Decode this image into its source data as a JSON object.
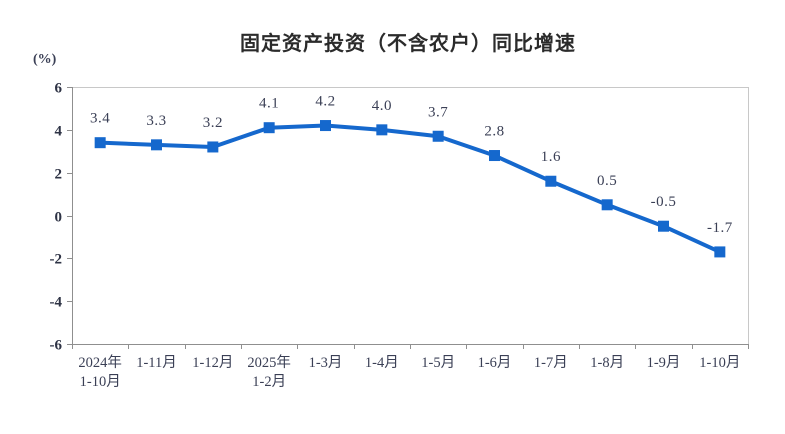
{
  "page": {
    "background": "#ffffff"
  },
  "chart_data": {
    "type": "line",
    "title": "固定资产投资（不含农户）同比增速",
    "unit_label": "(%)",
    "xlabel": "",
    "ylabel": "(%)",
    "ylim": [
      -6,
      6
    ],
    "y_ticks": [
      6,
      4,
      2,
      0,
      -2,
      -4,
      -6
    ],
    "grid": false,
    "legend_position": "none",
    "categories": [
      [
        "2024年",
        "1-10月"
      ],
      [
        "1-11月"
      ],
      [
        "1-12月"
      ],
      [
        "2025年",
        "1-2月"
      ],
      [
        "1-3月"
      ],
      [
        "1-4月"
      ],
      [
        "1-5月"
      ],
      [
        "1-6月"
      ],
      [
        "1-7月"
      ],
      [
        "1-8月"
      ],
      [
        "1-9月"
      ],
      [
        "1-10月"
      ]
    ],
    "values": [
      3.4,
      3.3,
      3.2,
      4.1,
      4.2,
      4.0,
      3.7,
      2.8,
      1.6,
      0.5,
      -0.5,
      -1.7
    ],
    "value_labels": [
      "3.4",
      "3.3",
      "3.2",
      "4.1",
      "4.2",
      "4.0",
      "3.7",
      "2.8",
      "1.6",
      "0.5",
      "-0.5",
      "-1.7"
    ],
    "line_color": "#1568cd",
    "marker": "square",
    "axis_color": "#8f8f8f",
    "border_color": "#c8c8c8",
    "text_color": "#3a3f55"
  }
}
